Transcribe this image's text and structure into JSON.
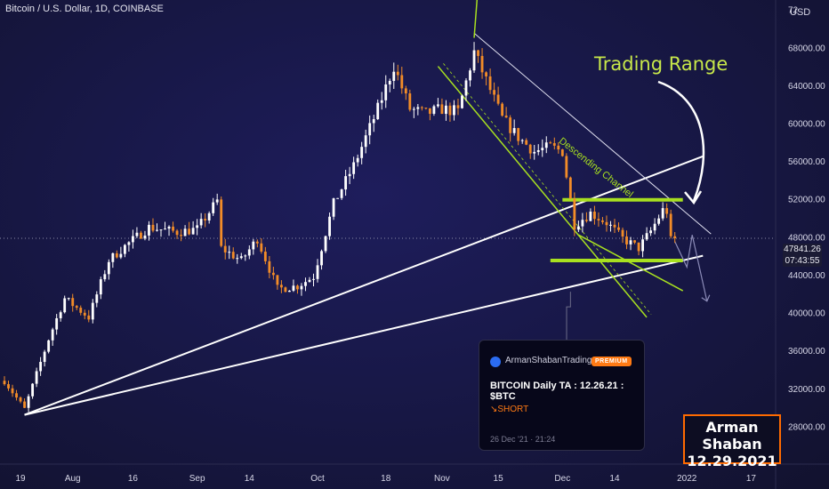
{
  "header": {
    "symbol_title": "Bitcoin / U.S. Dollar, 1D, COINBASE"
  },
  "annotations": {
    "trading_range": "Trading Range",
    "descending_channel": "Descending Channel"
  },
  "axis": {
    "currency": "USD",
    "top_partial_tick": "72"
  },
  "price_badge": {
    "price": "47841.26",
    "countdown": "07:43:55"
  },
  "post_card": {
    "author": "ArmanShabanTrading",
    "badge": "PREMIUM",
    "title": "BITCOIN Daily TA : 12.26.21 : $BTC",
    "direction": "↘SHORT",
    "date": "26 Dec '21 · 21:24"
  },
  "signature": {
    "name": "Arman Shaban",
    "date": "12.29.2021"
  },
  "colors": {
    "up": "#ffffff",
    "down": "#f28c28",
    "background": "#181848",
    "range_lines": "#a8e020",
    "channel_lines": "#a8e020",
    "trend_lines": "#ffffff",
    "accent_orange": "#ff6a00"
  },
  "chart_data": {
    "type": "candlestick",
    "title": "Bitcoin / U.S. Dollar, 1D, COINBASE",
    "ylim": [
      24000,
      73000
    ],
    "y_ticks": [
      68000,
      64000,
      60000,
      56000,
      52000,
      48000,
      44000,
      40000,
      36000,
      32000,
      28000
    ],
    "y_tick_labels": [
      "68000.00",
      "64000.00",
      "60000.00",
      "56000.00",
      "52000.00",
      "48000.00",
      "44000.00",
      "40000.00",
      "36000.00",
      "32000.00",
      "28000.00"
    ],
    "x_ticks": [
      {
        "label": "19",
        "date": "2021-07-19"
      },
      {
        "label": "Aug",
        "date": "2021-08-01"
      },
      {
        "label": "16",
        "date": "2021-08-16"
      },
      {
        "label": "Sep",
        "date": "2021-09-01"
      },
      {
        "label": "14",
        "date": "2021-09-14"
      },
      {
        "label": "Oct",
        "date": "2021-10-01"
      },
      {
        "label": "18",
        "date": "2021-10-18"
      },
      {
        "label": "Nov",
        "date": "2021-11-01"
      },
      {
        "label": "15",
        "date": "2021-11-15"
      },
      {
        "label": "Dec",
        "date": "2021-12-01"
      },
      {
        "label": "14",
        "date": "2021-12-14"
      },
      {
        "label": "2022",
        "date": "2022-01-01"
      },
      {
        "label": "17",
        "date": "2022-01-17"
      }
    ],
    "x_range": [
      "2021-07-15",
      "2022-01-22"
    ],
    "keypoints": [
      {
        "date": "2021-07-15",
        "close": 32800
      },
      {
        "date": "2021-07-20",
        "close": 29800
      },
      {
        "date": "2021-07-26",
        "close": 37200
      },
      {
        "date": "2021-07-30",
        "close": 41500
      },
      {
        "date": "2021-08-05",
        "close": 39500
      },
      {
        "date": "2021-08-10",
        "close": 45500
      },
      {
        "date": "2021-08-14",
        "close": 47000
      },
      {
        "date": "2021-08-20",
        "close": 49000
      },
      {
        "date": "2021-08-27",
        "close": 48500
      },
      {
        "date": "2021-09-01",
        "close": 48800
      },
      {
        "date": "2021-09-06",
        "close": 51800
      },
      {
        "date": "2021-09-07",
        "close": 46800
      },
      {
        "date": "2021-09-12",
        "close": 45500
      },
      {
        "date": "2021-09-16",
        "close": 47800
      },
      {
        "date": "2021-09-21",
        "close": 42500
      },
      {
        "date": "2021-09-26",
        "close": 42800
      },
      {
        "date": "2021-09-30",
        "close": 43800
      },
      {
        "date": "2021-10-05",
        "close": 51500
      },
      {
        "date": "2021-10-10",
        "close": 55500
      },
      {
        "date": "2021-10-16",
        "close": 61500
      },
      {
        "date": "2021-10-20",
        "close": 66000
      },
      {
        "date": "2021-10-24",
        "close": 61500
      },
      {
        "date": "2021-10-28",
        "close": 61000
      },
      {
        "date": "2021-11-01",
        "close": 61500
      },
      {
        "date": "2021-11-05",
        "close": 61200
      },
      {
        "date": "2021-11-09",
        "close": 67500
      },
      {
        "date": "2021-11-12",
        "close": 64500
      },
      {
        "date": "2021-11-16",
        "close": 60500
      },
      {
        "date": "2021-11-20",
        "close": 58500
      },
      {
        "date": "2021-11-24",
        "close": 57000
      },
      {
        "date": "2021-11-28",
        "close": 57500
      },
      {
        "date": "2021-12-01",
        "close": 57000
      },
      {
        "date": "2021-12-04",
        "close": 49300
      },
      {
        "date": "2021-12-08",
        "close": 50500
      },
      {
        "date": "2021-12-12",
        "close": 49500
      },
      {
        "date": "2021-12-16",
        "close": 47800
      },
      {
        "date": "2021-12-20",
        "close": 46800
      },
      {
        "date": "2021-12-23",
        "close": 48600
      },
      {
        "date": "2021-12-26",
        "close": 50800
      },
      {
        "date": "2021-12-27",
        "close": 50700
      },
      {
        "date": "2021-12-28",
        "close": 47600
      },
      {
        "date": "2021-12-29",
        "close": 47841.26
      }
    ],
    "current_price": 47841.26,
    "overlays": {
      "trading_range": {
        "top": 51900,
        "bottom": 45500
      },
      "trend_lines": [
        {
          "from": {
            "date": "2021-07-20",
            "price": 29200
          },
          "to": {
            "date": "2022-01-05",
            "price": 56500
          }
        },
        {
          "from": {
            "date": "2021-07-20",
            "price": 29200
          },
          "to": {
            "date": "2022-01-05",
            "price": 46000
          }
        }
      ],
      "descending_channel": {
        "upper": {
          "from": {
            "date": "2021-11-09",
            "price": 69000
          },
          "to": {
            "date": "2021-12-28",
            "price": 49800
          }
        },
        "lower": {
          "from": {
            "date": "2021-10-31",
            "price": 66000
          },
          "to": {
            "date": "2021-12-22",
            "price": 39500
          }
        }
      }
    }
  }
}
